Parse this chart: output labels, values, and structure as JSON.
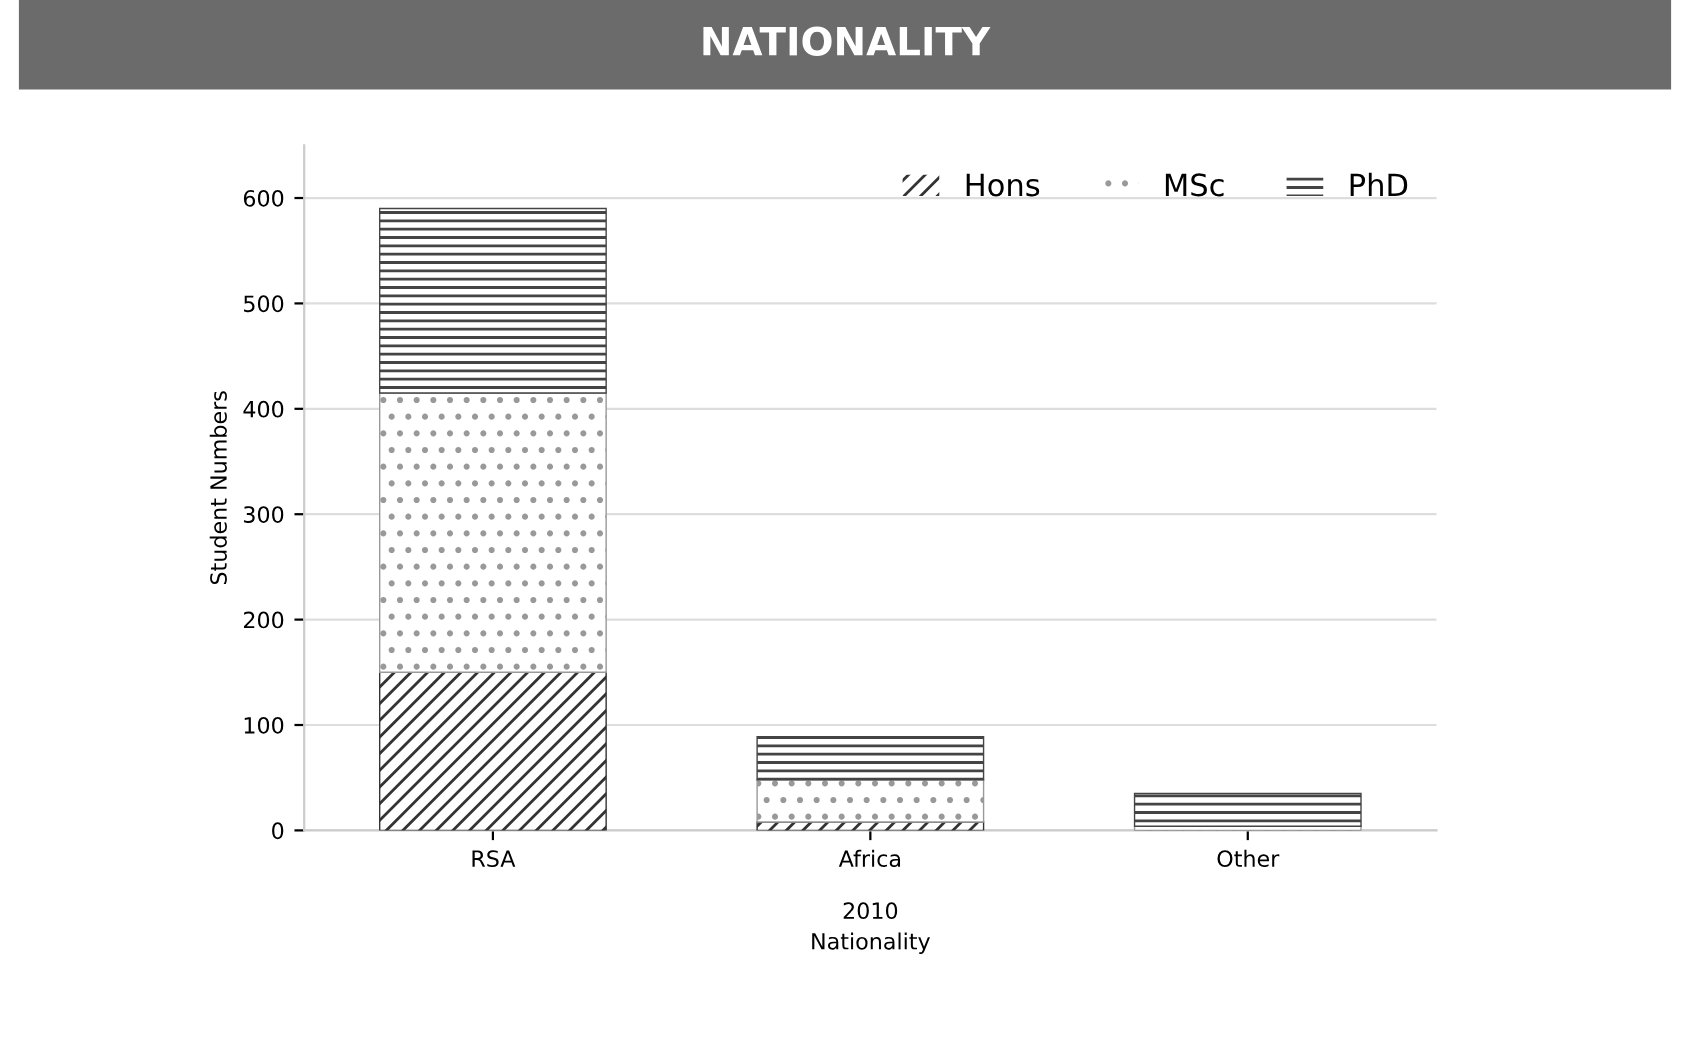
{
  "chart_data": {
    "type": "bar",
    "title": "NATIONALITY",
    "xlabel": "Nationality",
    "ylabel": "Student Numbers",
    "categories": [
      "RSA",
      "Africa",
      "Other"
    ],
    "series": [
      {
        "name": "Hons",
        "color": "#333333",
        "values": [
          150,
          8,
          0
        ]
      },
      {
        "name": "MSc",
        "color": "#999999",
        "values": [
          265,
          40,
          4
        ]
      },
      {
        "name": "PhD",
        "color": "#444444",
        "values": [
          175,
          41,
          31
        ]
      }
    ],
    "stacked": true,
    "ylim": [
      0,
      650
    ],
    "yticks": [
      0,
      100,
      200,
      300,
      400,
      500,
      600
    ],
    "grid": "y",
    "legend": "top right",
    "annotations": [
      "2010"
    ]
  }
}
